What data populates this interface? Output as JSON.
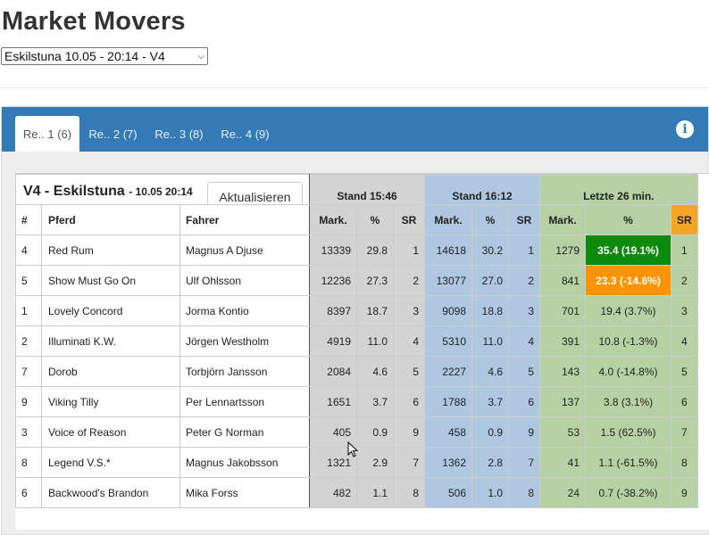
{
  "page": {
    "title": "Market Movers"
  },
  "race_select": {
    "value": "Eskilstuna 10.05 - 20:14 - V4"
  },
  "tabs": [
    {
      "label": "Re.. 1 (6)",
      "active": true
    },
    {
      "label": "Re.. 2 (7)",
      "active": false
    },
    {
      "label": "Re.. 3 (8)",
      "active": false
    },
    {
      "label": "Re.. 4 (9)",
      "active": false
    }
  ],
  "info_icon": "info-circle-icon",
  "card": {
    "title": "V4 - Eskilstuna",
    "subtitle": "- 10.05 20:14",
    "refresh_label": "Aktualisieren",
    "groups": {
      "stand1": "Stand 15:46",
      "stand2": "Stand 16:12",
      "last": "Letzte 26 min."
    },
    "columns": {
      "num": "#",
      "horse": "Pferd",
      "driver": "Fahrer",
      "mark1": "Mark.",
      "pct1": "%",
      "sr1": "SR",
      "mark2": "Mark.",
      "pct2": "%",
      "sr2": "SR",
      "mark3": "Mark.",
      "pct3": "%",
      "sr3": "SR"
    }
  },
  "colors": {
    "up": "#0c8a0c",
    "down": "#ff9400",
    "gray": "#d3d3d3",
    "blue": "#b0c7e1",
    "green": "#b6d2a5",
    "tabbar": "#337ab7"
  },
  "rows": [
    {
      "num": "4",
      "horse": "Red Rum",
      "driver": "Magnus A Djuse",
      "mark1": "13339",
      "pct1": "29.8",
      "sr1": "1",
      "mark2": "14618",
      "pct2": "30.2",
      "sr2": "1",
      "mark3": "1279",
      "pct3": "35.4 (19.1%)",
      "sr3": "1",
      "highlight": "up"
    },
    {
      "num": "5",
      "horse": "Show Must Go On",
      "driver": "Ulf Ohlsson",
      "mark1": "12236",
      "pct1": "27.3",
      "sr1": "2",
      "mark2": "13077",
      "pct2": "27.0",
      "sr2": "2",
      "mark3": "841",
      "pct3": "23.3 (-14.6%)",
      "sr3": "2",
      "highlight": "down"
    },
    {
      "num": "1",
      "horse": "Lovely Concord",
      "driver": "Jorma Kontio",
      "mark1": "8397",
      "pct1": "18.7",
      "sr1": "3",
      "mark2": "9098",
      "pct2": "18.8",
      "sr2": "3",
      "mark3": "701",
      "pct3": "19.4 (3.7%)",
      "sr3": "3",
      "highlight": ""
    },
    {
      "num": "2",
      "horse": "Illuminati K.W.",
      "driver": "Jörgen Westholm",
      "mark1": "4919",
      "pct1": "11.0",
      "sr1": "4",
      "mark2": "5310",
      "pct2": "11.0",
      "sr2": "4",
      "mark3": "391",
      "pct3": "10.8 (-1.3%)",
      "sr3": "4",
      "highlight": ""
    },
    {
      "num": "7",
      "horse": "Dorob",
      "driver": "Torbjörn Jansson",
      "mark1": "2084",
      "pct1": "4.6",
      "sr1": "5",
      "mark2": "2227",
      "pct2": "4.6",
      "sr2": "5",
      "mark3": "143",
      "pct3": "4.0 (-14.8%)",
      "sr3": "5",
      "highlight": ""
    },
    {
      "num": "9",
      "horse": "Viking Tilly",
      "driver": "Per Lennartsson",
      "mark1": "1651",
      "pct1": "3.7",
      "sr1": "6",
      "mark2": "1788",
      "pct2": "3.7",
      "sr2": "6",
      "mark3": "137",
      "pct3": "3.8 (3.1%)",
      "sr3": "6",
      "highlight": ""
    },
    {
      "num": "3",
      "horse": "Voice of Reason",
      "driver": "Peter G Norman",
      "mark1": "405",
      "pct1": "0.9",
      "sr1": "9",
      "mark2": "458",
      "pct2": "0.9",
      "sr2": "9",
      "mark3": "53",
      "pct3": "1.5 (62.5%)",
      "sr3": "7",
      "highlight": ""
    },
    {
      "num": "8",
      "horse": "Legend V.S.*",
      "driver": "Magnus Jakobsson",
      "mark1": "1321",
      "pct1": "2.9",
      "sr1": "7",
      "mark2": "1362",
      "pct2": "2.8",
      "sr2": "7",
      "mark3": "41",
      "pct3": "1.1 (-61.5%)",
      "sr3": "8",
      "highlight": ""
    },
    {
      "num": "6",
      "horse": "Backwood's Brandon",
      "driver": "Mika Forss",
      "mark1": "482",
      "pct1": "1.1",
      "sr1": "8",
      "mark2": "506",
      "pct2": "1.0",
      "sr2": "8",
      "mark3": "24",
      "pct3": "0.7 (-38.2%)",
      "sr3": "9",
      "highlight": ""
    }
  ]
}
